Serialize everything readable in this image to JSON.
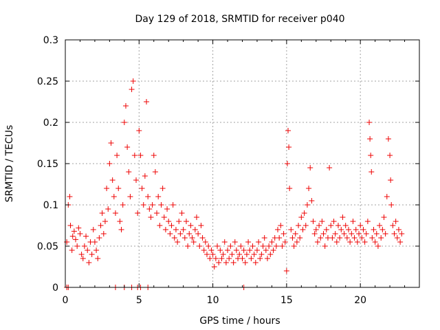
{
  "chart_data": {
    "type": "scatter",
    "title": "Day 129 of 2018, SRMTID for receiver p040",
    "xlabel": "GPS time / hours",
    "ylabel": "SRMTID / TECUs",
    "xlim": [
      0,
      24
    ],
    "ylim": [
      0,
      0.3
    ],
    "x_ticks": [
      0,
      5,
      10,
      15,
      20
    ],
    "x_tick_labels": [
      "0",
      "5",
      "10",
      "15",
      "20"
    ],
    "y_ticks": [
      0,
      0.05,
      0.1,
      0.15,
      0.2,
      0.25,
      0.3
    ],
    "y_tick_labels": [
      "0",
      "0.05",
      "0.1",
      "0.15",
      "0.2",
      "0.25",
      "0.3"
    ],
    "grid": true,
    "marker": "plus",
    "color": "#ee0000",
    "series": [
      {
        "name": "SRMTID",
        "points": [
          [
            0.1,
            0.055
          ],
          [
            0.2,
            0.1
          ],
          [
            0.3,
            0.11
          ],
          [
            0.35,
            0.075
          ],
          [
            0.45,
            0.045
          ],
          [
            0.5,
            0.062
          ],
          [
            0.6,
            0.068
          ],
          [
            0.7,
            0.058
          ],
          [
            0.8,
            0.05
          ],
          [
            0.9,
            0.072
          ],
          [
            1.0,
            0.065
          ],
          [
            1.1,
            0.04
          ],
          [
            1.2,
            0.035
          ],
          [
            1.3,
            0.05
          ],
          [
            1.4,
            0.062
          ],
          [
            1.5,
            0.045
          ],
          [
            1.6,
            0.03
          ],
          [
            1.7,
            0.055
          ],
          [
            1.8,
            0.04
          ],
          [
            1.9,
            0.07
          ],
          [
            2.0,
            0.055
          ],
          [
            2.1,
            0.045
          ],
          [
            2.2,
            0.035
          ],
          [
            2.3,
            0.06
          ],
          [
            2.4,
            0.075
          ],
          [
            2.5,
            0.09
          ],
          [
            2.6,
            0.065
          ],
          [
            2.7,
            0.08
          ],
          [
            2.8,
            0.12
          ],
          [
            2.9,
            0.095
          ],
          [
            3.0,
            0.15
          ],
          [
            3.1,
            0.175
          ],
          [
            3.2,
            0.13
          ],
          [
            3.3,
            0.11
          ],
          [
            3.4,
            0.09
          ],
          [
            3.5,
            0.16
          ],
          [
            3.6,
            0.12
          ],
          [
            3.7,
            0.08
          ],
          [
            3.8,
            0.07
          ],
          [
            3.9,
            0.1
          ],
          [
            4.0,
            0.2
          ],
          [
            4.1,
            0.22
          ],
          [
            4.2,
            0.17
          ],
          [
            4.3,
            0.14
          ],
          [
            4.4,
            0.11
          ],
          [
            4.5,
            0.24
          ],
          [
            4.6,
            0.25
          ],
          [
            4.7,
            0.16
          ],
          [
            4.8,
            0.13
          ],
          [
            4.9,
            0.09
          ],
          [
            5.0,
            0.19
          ],
          [
            5.1,
            0.16
          ],
          [
            5.2,
            0.12
          ],
          [
            5.3,
            0.1
          ],
          [
            5.4,
            0.135
          ],
          [
            5.5,
            0.225
          ],
          [
            5.6,
            0.11
          ],
          [
            5.7,
            0.095
          ],
          [
            5.8,
            0.085
          ],
          [
            5.9,
            0.1
          ],
          [
            6.0,
            0.16
          ],
          [
            6.1,
            0.14
          ],
          [
            6.2,
            0.09
          ],
          [
            6.3,
            0.11
          ],
          [
            6.4,
            0.075
          ],
          [
            6.5,
            0.1
          ],
          [
            6.6,
            0.12
          ],
          [
            6.7,
            0.085
          ],
          [
            6.8,
            0.07
          ],
          [
            6.9,
            0.095
          ],
          [
            7.0,
            0.08
          ],
          [
            7.1,
            0.065
          ],
          [
            7.2,
            0.075
          ],
          [
            7.3,
            0.1
          ],
          [
            7.4,
            0.06
          ],
          [
            7.5,
            0.07
          ],
          [
            7.6,
            0.055
          ],
          [
            7.7,
            0.08
          ],
          [
            7.8,
            0.065
          ],
          [
            7.9,
            0.09
          ],
          [
            8.0,
            0.07
          ],
          [
            8.1,
            0.06
          ],
          [
            8.2,
            0.08
          ],
          [
            8.3,
            0.05
          ],
          [
            8.4,
            0.065
          ],
          [
            8.5,
            0.075
          ],
          [
            8.6,
            0.06
          ],
          [
            8.7,
            0.055
          ],
          [
            8.8,
            0.07
          ],
          [
            8.9,
            0.085
          ],
          [
            9.0,
            0.065
          ],
          [
            9.1,
            0.05
          ],
          [
            9.2,
            0.075
          ],
          [
            9.3,
            0.06
          ],
          [
            9.4,
            0.045
          ],
          [
            9.5,
            0.055
          ],
          [
            9.6,
            0.04
          ],
          [
            9.7,
            0.05
          ],
          [
            9.8,
            0.035
          ],
          [
            9.9,
            0.045
          ],
          [
            10.0,
            0.04
          ],
          [
            10.1,
            0.025
          ],
          [
            10.2,
            0.035
          ],
          [
            10.3,
            0.05
          ],
          [
            10.4,
            0.03
          ],
          [
            10.5,
            0.045
          ],
          [
            10.6,
            0.035
          ],
          [
            10.7,
            0.04
          ],
          [
            10.8,
            0.055
          ],
          [
            10.9,
            0.03
          ],
          [
            11.0,
            0.045
          ],
          [
            11.1,
            0.035
          ],
          [
            11.2,
            0.05
          ],
          [
            11.3,
            0.04
          ],
          [
            11.4,
            0.03
          ],
          [
            11.5,
            0.055
          ],
          [
            11.6,
            0.045
          ],
          [
            11.7,
            0.035
          ],
          [
            11.8,
            0.04
          ],
          [
            11.9,
            0.05
          ],
          [
            12.0,
            0.035
          ],
          [
            12.1,
            0.045
          ],
          [
            12.2,
            0.03
          ],
          [
            12.3,
            0.04
          ],
          [
            12.4,
            0.055
          ],
          [
            12.5,
            0.045
          ],
          [
            12.6,
            0.035
          ],
          [
            12.7,
            0.05
          ],
          [
            12.8,
            0.04
          ],
          [
            12.9,
            0.03
          ],
          [
            13.0,
            0.045
          ],
          [
            13.1,
            0.055
          ],
          [
            13.2,
            0.035
          ],
          [
            13.3,
            0.04
          ],
          [
            13.4,
            0.05
          ],
          [
            13.5,
            0.06
          ],
          [
            13.6,
            0.045
          ],
          [
            13.7,
            0.035
          ],
          [
            13.8,
            0.05
          ],
          [
            13.9,
            0.04
          ],
          [
            14.0,
            0.055
          ],
          [
            14.1,
            0.045
          ],
          [
            14.2,
            0.06
          ],
          [
            14.3,
            0.05
          ],
          [
            14.4,
            0.07
          ],
          [
            14.5,
            0.06
          ],
          [
            14.6,
            0.075
          ],
          [
            14.7,
            0.05
          ],
          [
            14.8,
            0.065
          ],
          [
            14.9,
            0.055
          ],
          [
            15.0,
            0.02
          ],
          [
            15.05,
            0.15
          ],
          [
            15.1,
            0.19
          ],
          [
            15.15,
            0.17
          ],
          [
            15.2,
            0.12
          ],
          [
            15.3,
            0.07
          ],
          [
            15.4,
            0.06
          ],
          [
            15.5,
            0.05
          ],
          [
            15.6,
            0.065
          ],
          [
            15.7,
            0.055
          ],
          [
            15.8,
            0.075
          ],
          [
            15.9,
            0.06
          ],
          [
            16.0,
            0.085
          ],
          [
            16.1,
            0.07
          ],
          [
            16.2,
            0.09
          ],
          [
            16.3,
            0.075
          ],
          [
            16.4,
            0.1
          ],
          [
            16.5,
            0.12
          ],
          [
            16.6,
            0.145
          ],
          [
            16.7,
            0.105
          ],
          [
            16.8,
            0.08
          ],
          [
            16.9,
            0.065
          ],
          [
            17.0,
            0.07
          ],
          [
            17.1,
            0.055
          ],
          [
            17.2,
            0.075
          ],
          [
            17.3,
            0.06
          ],
          [
            17.4,
            0.08
          ],
          [
            17.5,
            0.065
          ],
          [
            17.6,
            0.05
          ],
          [
            17.7,
            0.07
          ],
          [
            17.8,
            0.06
          ],
          [
            17.9,
            0.145
          ],
          [
            18.0,
            0.075
          ],
          [
            18.1,
            0.06
          ],
          [
            18.2,
            0.08
          ],
          [
            18.3,
            0.065
          ],
          [
            18.4,
            0.055
          ],
          [
            18.5,
            0.075
          ],
          [
            18.6,
            0.06
          ],
          [
            18.7,
            0.07
          ],
          [
            18.8,
            0.085
          ],
          [
            18.9,
            0.065
          ],
          [
            19.0,
            0.075
          ],
          [
            19.1,
            0.06
          ],
          [
            19.2,
            0.07
          ],
          [
            19.3,
            0.055
          ],
          [
            19.4,
            0.065
          ],
          [
            19.5,
            0.08
          ],
          [
            19.6,
            0.06
          ],
          [
            19.7,
            0.07
          ],
          [
            19.8,
            0.055
          ],
          [
            19.9,
            0.065
          ],
          [
            20.0,
            0.075
          ],
          [
            20.1,
            0.06
          ],
          [
            20.2,
            0.07
          ],
          [
            20.3,
            0.055
          ],
          [
            20.4,
            0.065
          ],
          [
            20.5,
            0.08
          ],
          [
            20.6,
            0.2
          ],
          [
            20.65,
            0.18
          ],
          [
            20.7,
            0.16
          ],
          [
            20.75,
            0.14
          ],
          [
            20.8,
            0.06
          ],
          [
            20.9,
            0.07
          ],
          [
            21.0,
            0.055
          ],
          [
            21.1,
            0.065
          ],
          [
            21.2,
            0.05
          ],
          [
            21.3,
            0.075
          ],
          [
            21.4,
            0.06
          ],
          [
            21.5,
            0.07
          ],
          [
            21.6,
            0.085
          ],
          [
            21.7,
            0.065
          ],
          [
            21.8,
            0.11
          ],
          [
            21.9,
            0.18
          ],
          [
            22.0,
            0.16
          ],
          [
            22.05,
            0.13
          ],
          [
            22.1,
            0.1
          ],
          [
            22.2,
            0.075
          ],
          [
            22.3,
            0.065
          ],
          [
            22.4,
            0.08
          ],
          [
            22.5,
            0.06
          ],
          [
            22.6,
            0.07
          ],
          [
            22.7,
            0.055
          ],
          [
            22.8,
            0.065
          ],
          [
            0.1,
            0
          ],
          [
            0.2,
            0
          ],
          [
            3.4,
            0
          ],
          [
            4.0,
            0
          ],
          [
            4.5,
            0
          ],
          [
            4.9,
            0
          ],
          [
            5.1,
            0
          ],
          [
            5.6,
            0
          ],
          [
            12.1,
            0
          ]
        ]
      }
    ]
  }
}
